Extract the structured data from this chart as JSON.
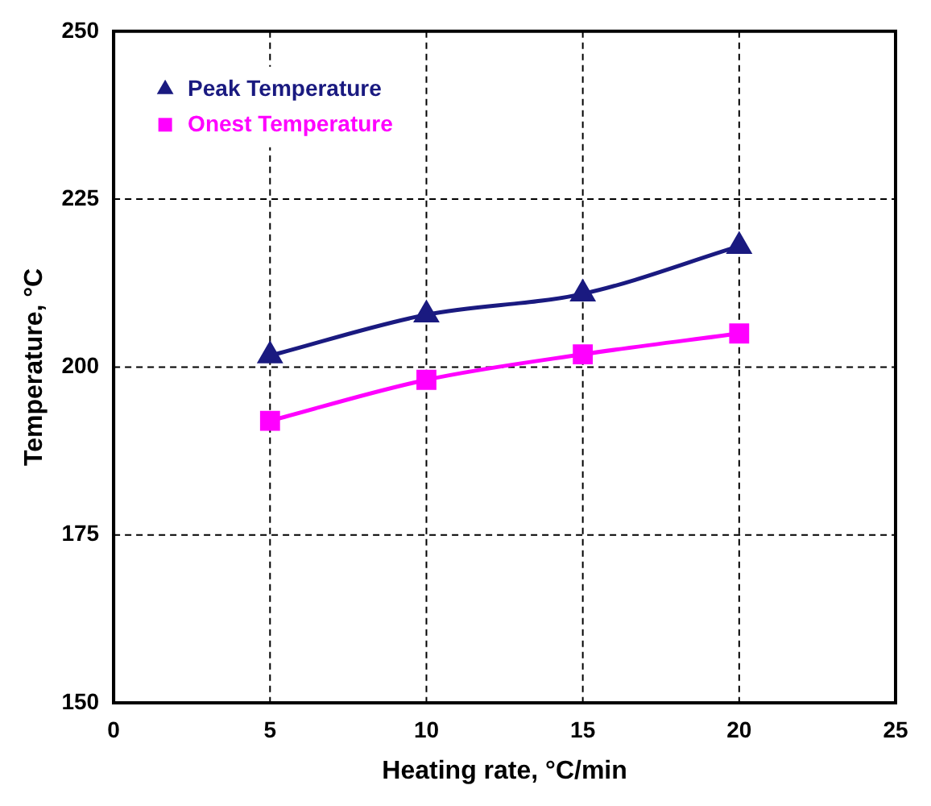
{
  "chart_data": {
    "type": "line",
    "xlabel": "Heating rate, °C/min",
    "ylabel": "Temperature, °C",
    "x": [
      5,
      10,
      15,
      20
    ],
    "series": [
      {
        "name": "Peak Temperature",
        "color": "#1a1a80",
        "values": [
          201.7,
          207.8,
          210.9,
          218
        ],
        "marker": "triangle"
      },
      {
        "name": "Onest Temperature",
        "color": "#ff00ff",
        "values": [
          192,
          198.1,
          201.9,
          205
        ],
        "marker": "square"
      }
    ],
    "xlim": [
      0,
      25
    ],
    "xticks": [
      0,
      5,
      10,
      15,
      20,
      25
    ],
    "ylim": [
      150,
      250
    ],
    "yticks": [
      150,
      175,
      200,
      225,
      250
    ],
    "grid": true,
    "legend": "top left",
    "line_style": "solid"
  }
}
